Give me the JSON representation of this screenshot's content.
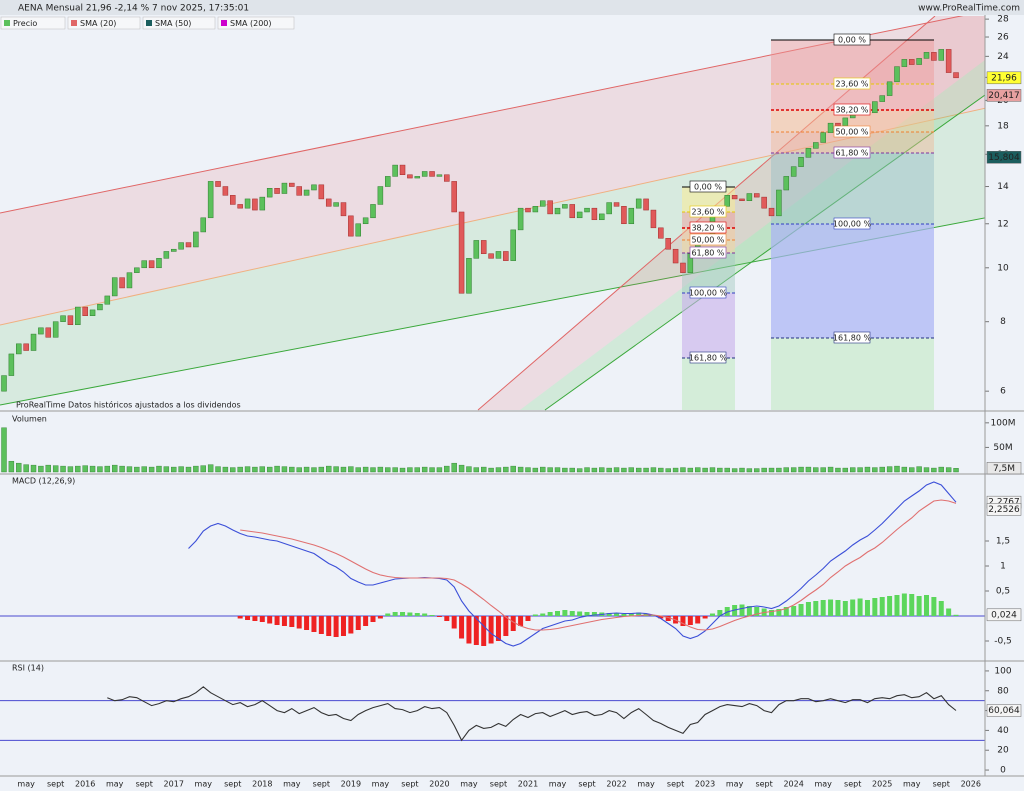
{
  "header": {
    "title": "AENA Mensual 21,96 -2,14 % 7 nov 2025, 17:35:01",
    "site": "www.ProRealTime.com"
  },
  "chart_data": [
    {
      "type": "candlestick",
      "legend": [
        {
          "name": "Precio",
          "color": "#5cc05c"
        },
        {
          "name": "SMA (20)",
          "color": "#e06666"
        },
        {
          "name": "SMA (50)",
          "color": "#1b5e5e"
        },
        {
          "name": "SMA (200)",
          "color": "#cc00cc"
        }
      ],
      "note": "ProRealTime Datos históricos ajustados a los dividendos",
      "open": [
        6.0,
        6.4,
        7.0,
        7.3,
        7.1,
        7.6,
        7.8,
        7.5,
        8.0,
        8.2,
        7.9,
        8.5,
        8.2,
        8.4,
        8.6,
        8.9,
        9.6,
        9.2,
        9.8,
        10.0,
        10.3,
        10.0,
        10.4,
        10.7,
        10.8,
        11.1,
        10.9,
        11.6,
        12.3,
        14.3,
        14.0,
        13.5,
        13.0,
        12.8,
        13.3,
        12.7,
        13.4,
        13.9,
        13.6,
        14.2,
        14.0,
        13.5,
        13.8,
        14.1,
        13.3,
        12.9,
        13.1,
        12.4,
        11.4,
        12.0,
        12.3,
        13.0,
        14.0,
        14.6,
        15.3,
        14.7,
        14.5,
        14.6,
        14.9,
        14.6,
        14.7,
        14.3,
        12.6,
        9.0,
        10.4,
        11.2,
        10.6,
        10.4,
        10.7,
        10.3,
        11.7,
        12.8,
        12.6,
        12.9,
        13.2,
        12.5,
        12.8,
        13.0,
        12.3,
        12.6,
        12.8,
        12.2,
        12.5,
        13.1,
        12.9,
        12.0,
        12.8,
        13.3,
        12.7,
        11.8,
        11.3,
        10.8,
        10.2,
        9.8,
        10.6,
        11.0,
        11.3,
        12.4,
        12.9,
        13.5,
        13.3,
        13.2,
        13.6,
        13.4,
        12.8,
        12.4,
        13.8,
        14.6,
        15.2,
        15.8,
        16.4,
        16.8,
        17.5,
        18.2,
        18.0,
        18.6,
        19.0,
        19.3,
        19.0,
        19.9,
        20.4,
        21.6,
        23.0,
        23.7,
        23.2,
        23.8,
        24.4,
        23.6,
        24.7,
        22.44
      ],
      "close": [
        6.4,
        7.0,
        7.3,
        7.1,
        7.6,
        7.8,
        7.5,
        8.0,
        8.2,
        7.9,
        8.5,
        8.2,
        8.4,
        8.6,
        8.9,
        9.6,
        9.2,
        9.8,
        10.0,
        10.3,
        10.0,
        10.4,
        10.7,
        10.8,
        11.1,
        10.9,
        11.6,
        12.3,
        14.3,
        14.0,
        13.5,
        13.0,
        12.8,
        13.3,
        12.7,
        13.4,
        13.9,
        13.6,
        14.2,
        14.0,
        13.5,
        13.8,
        14.1,
        13.3,
        12.9,
        13.1,
        12.4,
        11.4,
        12.0,
        12.3,
        13.0,
        14.0,
        14.6,
        15.3,
        14.7,
        14.5,
        14.6,
        14.9,
        14.6,
        14.7,
        14.3,
        12.6,
        9.0,
        10.4,
        11.2,
        10.6,
        10.4,
        10.7,
        10.3,
        11.7,
        12.8,
        12.6,
        12.9,
        13.2,
        12.5,
        12.8,
        13.0,
        12.3,
        12.6,
        12.8,
        12.2,
        12.5,
        13.1,
        12.9,
        12.0,
        12.8,
        13.3,
        12.7,
        11.8,
        11.3,
        10.8,
        10.2,
        9.8,
        10.6,
        11.0,
        11.3,
        12.4,
        12.9,
        13.5,
        13.3,
        13.2,
        13.6,
        13.4,
        12.8,
        12.4,
        13.8,
        14.6,
        15.2,
        15.8,
        16.4,
        16.8,
        17.5,
        18.2,
        18.0,
        18.6,
        19.0,
        19.3,
        19.0,
        19.9,
        20.4,
        21.6,
        23.0,
        23.7,
        23.2,
        23.8,
        24.4,
        23.6,
        24.7,
        22.44,
        21.96
      ],
      "up_color": "#5cc05c",
      "down_color": "#e05a5a",
      "log_scale": true,
      "ylim": [
        5.55,
        28.6
      ],
      "yticks": [
        6,
        8,
        10,
        12,
        14,
        16,
        18,
        20,
        22,
        24,
        26,
        28
      ],
      "price_labels": [
        {
          "value": 21.96,
          "label": "21,96",
          "color": "#ffff33"
        },
        {
          "value": 20.417,
          "label": "20,417",
          "color": "#e8a0a0"
        },
        {
          "value": 15.804,
          "label": "15,804",
          "color": "#1b5e5e"
        }
      ],
      "fibonacci": [
        {
          "levels": [
            "0,00 %",
            "23,60 %",
            "38,20 %",
            "50,00 %",
            "61,80 %",
            "100,00 %",
            "161,80 %"
          ]
        },
        {
          "levels": [
            "0,00 %",
            "23,60 %",
            "38,20 %",
            "50,00 %",
            "61,80 %",
            "100,00 %",
            "161,80 %"
          ]
        }
      ],
      "xlabels": [
        "may",
        "sept",
        "2016",
        "may",
        "sept",
        "2017",
        "may",
        "sept",
        "2018",
        "may",
        "sept",
        "2019",
        "may",
        "sept",
        "2020",
        "may",
        "sept",
        "2021",
        "may",
        "sept",
        "2022",
        "may",
        "sept",
        "2023",
        "may",
        "sept",
        "2024",
        "may",
        "sept",
        "2025",
        "may",
        "sept",
        "2026"
      ]
    },
    {
      "type": "bar",
      "title": "Volumen",
      "color": "#5cc05c",
      "values": [
        90,
        22,
        18,
        15,
        14,
        12,
        14,
        13,
        12,
        11,
        12,
        13,
        12,
        11,
        12,
        14,
        12,
        11,
        10,
        11,
        10,
        12,
        11,
        10,
        11,
        10,
        12,
        13,
        15,
        11,
        10,
        9,
        10,
        11,
        10,
        11,
        10,
        12,
        11,
        10,
        9,
        10,
        9,
        10,
        12,
        11,
        10,
        11,
        9,
        10,
        9,
        10,
        9,
        9,
        8,
        9,
        9,
        10,
        9,
        9,
        12,
        18,
        14,
        11,
        9,
        10,
        8,
        9,
        10,
        12,
        10,
        9,
        8,
        10,
        9,
        9,
        8,
        8,
        7,
        9,
        8,
        9,
        8,
        9,
        8,
        9,
        8,
        8,
        9,
        8,
        7,
        8,
        9,
        8,
        9,
        8,
        9,
        8,
        8,
        7,
        8,
        7,
        7,
        8,
        8,
        8,
        9,
        9,
        10,
        10,
        9,
        9,
        10,
        8,
        8,
        9,
        9,
        10,
        9,
        10,
        11,
        12,
        10,
        9,
        11,
        9,
        8,
        10,
        9,
        7.5
      ],
      "ylim": [
        0,
        120
      ],
      "yticks": [
        {
          "value": 50,
          "label": "50M"
        },
        {
          "value": 100,
          "label": "100M"
        }
      ],
      "last_label": {
        "value": 7.5,
        "label": "7,5M"
      }
    },
    {
      "type": "macd",
      "title": "MACD (12,26,9)",
      "series": [
        {
          "name": "MACD",
          "color": "#3b4fd8",
          "values": [
            null,
            null,
            null,
            null,
            null,
            null,
            null,
            null,
            null,
            null,
            null,
            null,
            null,
            null,
            null,
            null,
            null,
            null,
            null,
            null,
            null,
            null,
            null,
            null,
            null,
            1.35,
            1.5,
            1.7,
            1.8,
            1.85,
            1.8,
            1.72,
            1.65,
            1.6,
            1.58,
            1.55,
            1.52,
            1.5,
            1.45,
            1.4,
            1.35,
            1.3,
            1.25,
            1.15,
            1.05,
            0.98,
            0.88,
            0.75,
            0.68,
            0.62,
            0.62,
            0.66,
            0.7,
            0.74,
            0.75,
            0.76,
            0.76,
            0.77,
            0.76,
            0.75,
            0.72,
            0.58,
            0.3,
            0.1,
            -0.05,
            -0.2,
            -0.35,
            -0.45,
            -0.55,
            -0.6,
            -0.55,
            -0.45,
            -0.35,
            -0.25,
            -0.2,
            -0.15,
            -0.1,
            -0.08,
            -0.03,
            0,
            0.02,
            0.03,
            0.05,
            0.06,
            0.05,
            0.05,
            0.06,
            0.05,
            0.02,
            -0.05,
            -0.15,
            -0.25,
            -0.4,
            -0.45,
            -0.4,
            -0.3,
            -0.15,
            0,
            0.08,
            0.12,
            0.15,
            0.18,
            0.2,
            0.18,
            0.15,
            0.2,
            0.3,
            0.42,
            0.55,
            0.7,
            0.82,
            0.95,
            1.1,
            1.2,
            1.3,
            1.42,
            1.52,
            1.6,
            1.72,
            1.85,
            2.0,
            2.15,
            2.3,
            2.4,
            2.5,
            2.62,
            2.68,
            2.62,
            2.45,
            2.2767
          ]
        },
        {
          "name": "Señal",
          "color": "#e07070",
          "values": [
            null,
            null,
            null,
            null,
            null,
            null,
            null,
            null,
            null,
            null,
            null,
            null,
            null,
            null,
            null,
            null,
            null,
            null,
            null,
            null,
            null,
            null,
            null,
            null,
            null,
            null,
            null,
            null,
            null,
            null,
            null,
            null,
            1.72,
            1.7,
            1.68,
            1.66,
            1.63,
            1.6,
            1.57,
            1.54,
            1.5,
            1.46,
            1.42,
            1.37,
            1.31,
            1.25,
            1.18,
            1.1,
            1.02,
            0.94,
            0.87,
            0.82,
            0.79,
            0.77,
            0.76,
            0.76,
            0.76,
            0.76,
            0.76,
            0.76,
            0.75,
            0.72,
            0.64,
            0.55,
            0.44,
            0.33,
            0.21,
            0.1,
            -0.02,
            -0.12,
            -0.2,
            -0.25,
            -0.28,
            -0.28,
            -0.27,
            -0.25,
            -0.22,
            -0.19,
            -0.16,
            -0.13,
            -0.1,
            -0.07,
            -0.05,
            -0.03,
            -0.01,
            0,
            0.01,
            0.02,
            0.02,
            0,
            -0.03,
            -0.08,
            -0.15,
            -0.22,
            -0.27,
            -0.28,
            -0.26,
            -0.21,
            -0.15,
            -0.09,
            -0.04,
            0,
            0.04,
            0.07,
            0.09,
            0.11,
            0.15,
            0.22,
            0.31,
            0.42,
            0.52,
            0.63,
            0.77,
            0.88,
            1.0,
            1.09,
            1.17,
            1.28,
            1.36,
            1.47,
            1.6,
            1.73,
            1.85,
            1.96,
            2.1,
            2.2,
            2.3,
            2.32,
            2.3,
            2.2526
          ]
        }
      ],
      "histogram": [
        null,
        null,
        null,
        null,
        null,
        null,
        null,
        null,
        null,
        null,
        null,
        null,
        null,
        null,
        null,
        null,
        null,
        null,
        null,
        null,
        null,
        null,
        null,
        null,
        null,
        null,
        null,
        null,
        null,
        null,
        null,
        null,
        -0.05,
        -0.08,
        -0.1,
        -0.12,
        -0.15,
        -0.18,
        -0.2,
        -0.22,
        -0.25,
        -0.28,
        -0.32,
        -0.36,
        -0.4,
        -0.42,
        -0.4,
        -0.35,
        -0.28,
        -0.2,
        -0.12,
        -0.05,
        0.05,
        0.08,
        0.08,
        0.07,
        0.06,
        0.05,
        0.02,
        -0.02,
        -0.1,
        -0.25,
        -0.45,
        -0.55,
        -0.58,
        -0.6,
        -0.55,
        -0.5,
        -0.4,
        -0.3,
        -0.2,
        -0.1,
        0.03,
        0.05,
        0.08,
        0.1,
        0.12,
        0.1,
        0.09,
        0.08,
        0.08,
        0.07,
        0.06,
        0.05,
        0.04,
        0.06,
        0.07,
        0.05,
        0.02,
        -0.05,
        -0.1,
        -0.15,
        -0.2,
        -0.18,
        -0.15,
        -0.05,
        0.05,
        0.12,
        0.18,
        0.22,
        0.23,
        0.2,
        0.18,
        0.15,
        0.12,
        0.14,
        0.18,
        0.2,
        0.24,
        0.28,
        0.3,
        0.32,
        0.33,
        0.32,
        0.3,
        0.33,
        0.35,
        0.32,
        0.36,
        0.38,
        0.4,
        0.42,
        0.45,
        0.44,
        0.4,
        0.42,
        0.38,
        0.3,
        0.15,
        0.024
      ],
      "up_color": "#5cd65c",
      "down_color": "#ee2222",
      "ylim": [
        -0.88,
        2.82
      ],
      "yticks": [
        {
          "value": -0.5,
          "label": "-0,5"
        },
        {
          "value": 0.5,
          "label": "0,5"
        },
        1,
        {
          "value": 1.5,
          "label": "1,5"
        }
      ],
      "last_labels": [
        {
          "value": 2.2767,
          "label": "2,2767",
          "color": "#3b4fd8"
        },
        {
          "value": 2.2526,
          "label": "2,2526",
          "color": "#e07070"
        },
        {
          "value": 0.024,
          "label": "0,024",
          "color": "#cccccc"
        }
      ]
    },
    {
      "type": "line",
      "title": "RSI (14)",
      "color": "#333333",
      "values": [
        null,
        null,
        null,
        null,
        null,
        null,
        null,
        null,
        null,
        null,
        null,
        null,
        null,
        null,
        73,
        70,
        71,
        74,
        73,
        69,
        65,
        67,
        70,
        69,
        72,
        74,
        78,
        84,
        78,
        74,
        70,
        66,
        68,
        64,
        66,
        70,
        65,
        60,
        58,
        62,
        57,
        60,
        63,
        58,
        55,
        56,
        52,
        50,
        56,
        60,
        63,
        65,
        67,
        62,
        61,
        58,
        60,
        64,
        62,
        63,
        58,
        45,
        30,
        40,
        45,
        42,
        43,
        47,
        44,
        51,
        56,
        53,
        57,
        58,
        54,
        57,
        60,
        56,
        58,
        59,
        55,
        56,
        60,
        58,
        52,
        58,
        62,
        56,
        50,
        47,
        43,
        40,
        37,
        46,
        48,
        56,
        60,
        64,
        66,
        65,
        64,
        67,
        65,
        60,
        58,
        66,
        70,
        70,
        72,
        72,
        69,
        70,
        72,
        70,
        68,
        71,
        71,
        68,
        72,
        73,
        72,
        75,
        76,
        73,
        74,
        78,
        72,
        75,
        66,
        60.064
      ],
      "levels": [
        30,
        70
      ],
      "ylim": [
        -6,
        108
      ],
      "yticks": [
        0,
        20,
        40,
        60,
        80,
        100
      ],
      "last_label": {
        "value": 60.064,
        "label": "60,064"
      }
    }
  ]
}
